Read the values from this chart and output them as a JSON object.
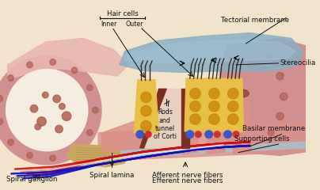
{
  "labels": {
    "hair_cells": "Hair cells",
    "inner": "Inner",
    "outer": "Outer",
    "tectorial": "Tectorial membrane",
    "stereocilia": "Stereocilia",
    "rods_tunnel": "Rods\nand\ntunnel\nof Corti",
    "basilar": "Basilar membrane",
    "supporting": "Supporting cells",
    "spiral_lamina": "Spiral lamina",
    "afferent": "Afferent nerve fibers",
    "efferent": "Efferent nerve fibers",
    "spiral_ganglion": "Spiral ganglion"
  },
  "colors": {
    "background": "#f2e4ca",
    "tectorial_membrane": "#8aafc5",
    "hair_cell_body": "#e8c048",
    "hair_cell_nucleus": "#c8880a",
    "pink_tissue": "#d9918a",
    "light_pink": "#e8b8b0",
    "dark_maroon": "#7a3020",
    "nerve_red": "#cc1010",
    "nerve_blue": "#1010bb",
    "nerve_white": "#f0f0f0",
    "basilar_strip": "#b0bac2",
    "spiral_lamina_color": "#c8a860",
    "outer_wall": "#d08878",
    "circle_outer": "#d09090",
    "circle_inner": "#f5ede0",
    "circle_dots": "#b06050",
    "annotation": "#111111"
  },
  "figsize": [
    4.04,
    2.4
  ],
  "dpi": 100
}
